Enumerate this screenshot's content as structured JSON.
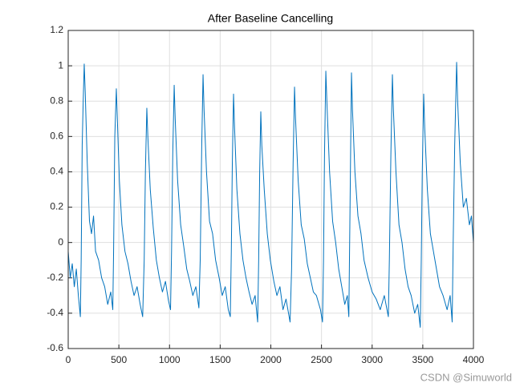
{
  "chart_data": {
    "type": "line",
    "title": "After Baseline Cancelling",
    "color": "#0072bd",
    "grid": true,
    "xlim": [
      0,
      4000
    ],
    "xticks": [
      0,
      500,
      1000,
      1500,
      2000,
      2500,
      3000,
      3500,
      4000
    ],
    "ylim": [
      -0.6,
      1.2
    ],
    "yticks": [
      -0.6,
      -0.4,
      -0.2,
      0,
      0.2,
      0.4,
      0.6,
      0.8,
      1,
      1.2
    ],
    "x": [
      0,
      20,
      40,
      60,
      80,
      100,
      120,
      128,
      138,
      148,
      158,
      168,
      188,
      210,
      230,
      250,
      270,
      300,
      330,
      360,
      390,
      420,
      440,
      448,
      460,
      475,
      485,
      505,
      530,
      560,
      590,
      620,
      650,
      680,
      710,
      735,
      750,
      762,
      776,
      786,
      810,
      840,
      870,
      900,
      930,
      960,
      990,
      1010,
      1020,
      1032,
      1046,
      1056,
      1080,
      1110,
      1140,
      1170,
      1200,
      1230,
      1260,
      1290,
      1303,
      1318,
      1331,
      1341,
      1365,
      1395,
      1425,
      1455,
      1490,
      1520,
      1550,
      1580,
      1600,
      1610,
      1620,
      1632,
      1642,
      1665,
      1695,
      1725,
      1755,
      1785,
      1815,
      1845,
      1870,
      1880,
      1890,
      1901,
      1911,
      1935,
      1965,
      1995,
      2030,
      2060,
      2090,
      2120,
      2150,
      2190,
      2205,
      2220,
      2234,
      2244,
      2270,
      2300,
      2330,
      2360,
      2390,
      2420,
      2450,
      2490,
      2510,
      2520,
      2530,
      2543,
      2553,
      2580,
      2610,
      2640,
      2670,
      2700,
      2730,
      2755,
      2770,
      2780,
      2796,
      2806,
      2830,
      2860,
      2890,
      2920,
      2960,
      3000,
      3040,
      3080,
      3120,
      3160,
      3170,
      3185,
      3200,
      3210,
      3235,
      3265,
      3295,
      3325,
      3355,
      3385,
      3420,
      3450,
      3475,
      3485,
      3495,
      3509,
      3519,
      3545,
      3575,
      3605,
      3635,
      3665,
      3700,
      3740,
      3770,
      3790,
      3800,
      3815,
      3834,
      3844,
      3870,
      3900,
      3930,
      3960,
      3980,
      4000
    ],
    "values": [
      -0.05,
      -0.2,
      -0.12,
      -0.25,
      -0.15,
      -0.3,
      -0.42,
      -0.1,
      0.55,
      0.8,
      1.01,
      0.85,
      0.45,
      0.12,
      0.05,
      0.15,
      -0.05,
      -0.1,
      -0.2,
      -0.25,
      -0.35,
      -0.28,
      -0.38,
      -0.05,
      0.6,
      0.87,
      0.7,
      0.35,
      0.1,
      -0.05,
      -0.12,
      -0.22,
      -0.3,
      -0.25,
      -0.35,
      -0.42,
      -0.1,
      0.4,
      0.76,
      0.6,
      0.3,
      0.08,
      -0.1,
      -0.2,
      -0.28,
      -0.22,
      -0.33,
      -0.38,
      -0.05,
      0.5,
      0.89,
      0.7,
      0.35,
      0.1,
      -0.02,
      -0.15,
      -0.22,
      -0.3,
      -0.25,
      -0.37,
      -0.1,
      0.55,
      0.95,
      0.75,
      0.4,
      0.12,
      0.05,
      -0.1,
      -0.2,
      -0.3,
      -0.25,
      -0.38,
      -0.42,
      -0.05,
      0.45,
      0.84,
      0.65,
      0.3,
      0.05,
      -0.1,
      -0.2,
      -0.28,
      -0.35,
      -0.3,
      -0.45,
      -0.1,
      0.4,
      0.74,
      0.55,
      0.3,
      0.05,
      -0.1,
      -0.22,
      -0.3,
      -0.25,
      -0.38,
      -0.32,
      -0.45,
      -0.15,
      0.45,
      0.88,
      0.7,
      0.35,
      0.1,
      0.02,
      -0.12,
      -0.2,
      -0.28,
      -0.3,
      -0.38,
      -0.45,
      -0.1,
      0.5,
      0.97,
      0.8,
      0.4,
      0.12,
      0,
      -0.15,
      -0.25,
      -0.35,
      -0.3,
      -0.42,
      0.1,
      0.96,
      0.75,
      0.4,
      0.15,
      0.05,
      -0.1,
      -0.2,
      -0.28,
      -0.32,
      -0.38,
      -0.3,
      -0.42,
      -0.1,
      0.5,
      0.95,
      0.75,
      0.4,
      0.1,
      0,
      -0.15,
      -0.25,
      -0.3,
      -0.4,
      -0.35,
      -0.48,
      -0.1,
      0.4,
      0.84,
      0.65,
      0.3,
      0.05,
      -0.05,
      -0.15,
      -0.25,
      -0.3,
      -0.38,
      -0.3,
      -0.45,
      0,
      0.55,
      1.02,
      0.8,
      0.45,
      0.2,
      0.25,
      0.1,
      0.15,
      0
    ]
  },
  "watermark": "CSDN @Simuworld"
}
